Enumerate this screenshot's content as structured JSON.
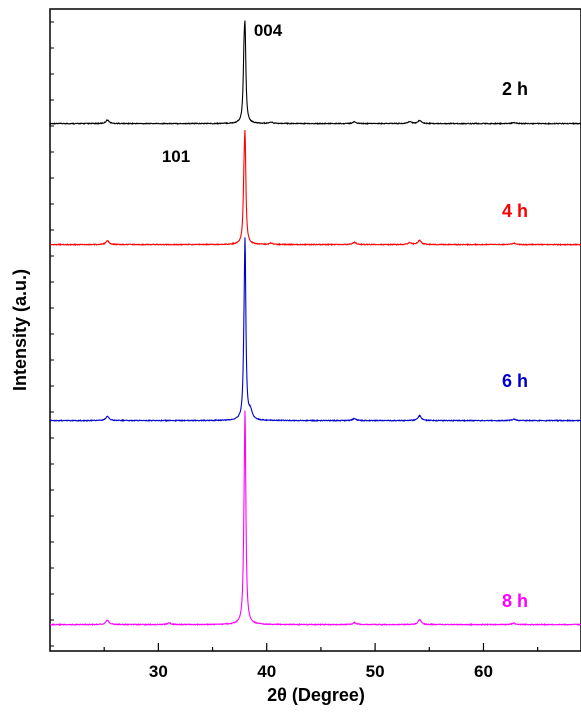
{
  "chart_data": {
    "type": "line",
    "xlabel": "2θ (Degree)",
    "ylabel": "Intensity (a.u.)",
    "xlim": [
      20,
      69
    ],
    "xticks": [
      30,
      40,
      50,
      60
    ],
    "yticks_labeled": false,
    "grid": false,
    "annotations": [
      {
        "text": "004",
        "x": 38.0,
        "series": "2 h"
      },
      {
        "text": "101",
        "x": 25.3,
        "series": "4 h"
      }
    ],
    "series": [
      {
        "name": "2 h",
        "color": "#000000",
        "baseline": 0.0,
        "peak_height": 0.575,
        "peaks": [
          [
            25.3,
            0.025
          ],
          [
            37.9,
            0.34
          ],
          [
            38.0,
            0.575
          ],
          [
            40.4,
            0.01
          ],
          [
            48.1,
            0.012
          ],
          [
            53.2,
            0.014
          ],
          [
            54.1,
            0.022
          ],
          [
            62.8,
            0.008
          ]
        ]
      },
      {
        "name": "4 h",
        "color": "#ff0000",
        "baseline": 0.0,
        "peak_height": 0.675,
        "peaks": [
          [
            25.3,
            0.028
          ],
          [
            37.9,
            0.3
          ],
          [
            38.0,
            0.675
          ],
          [
            40.4,
            0.01
          ],
          [
            48.1,
            0.016
          ],
          [
            53.2,
            0.014
          ],
          [
            54.1,
            0.03
          ],
          [
            62.8,
            0.01
          ]
        ]
      },
      {
        "name": "6 h",
        "color": "#0000cc",
        "baseline": 0.0,
        "peak_height": 1.19,
        "peaks": [
          [
            25.3,
            0.03
          ],
          [
            37.9,
            0.25
          ],
          [
            38.0,
            1.19
          ],
          [
            38.5,
            0.06
          ],
          [
            48.1,
            0.015
          ],
          [
            54.1,
            0.035
          ],
          [
            62.8,
            0.01
          ]
        ]
      },
      {
        "name": "8 h",
        "color": "#ff00ff",
        "baseline": 0.0,
        "peak_height": 1.42,
        "peaks": [
          [
            25.3,
            0.03
          ],
          [
            31.0,
            0.012
          ],
          [
            37.9,
            0.25
          ],
          [
            38.0,
            1.42
          ],
          [
            48.1,
            0.015
          ],
          [
            54.1,
            0.035
          ],
          [
            62.8,
            0.01
          ]
        ]
      }
    ]
  }
}
